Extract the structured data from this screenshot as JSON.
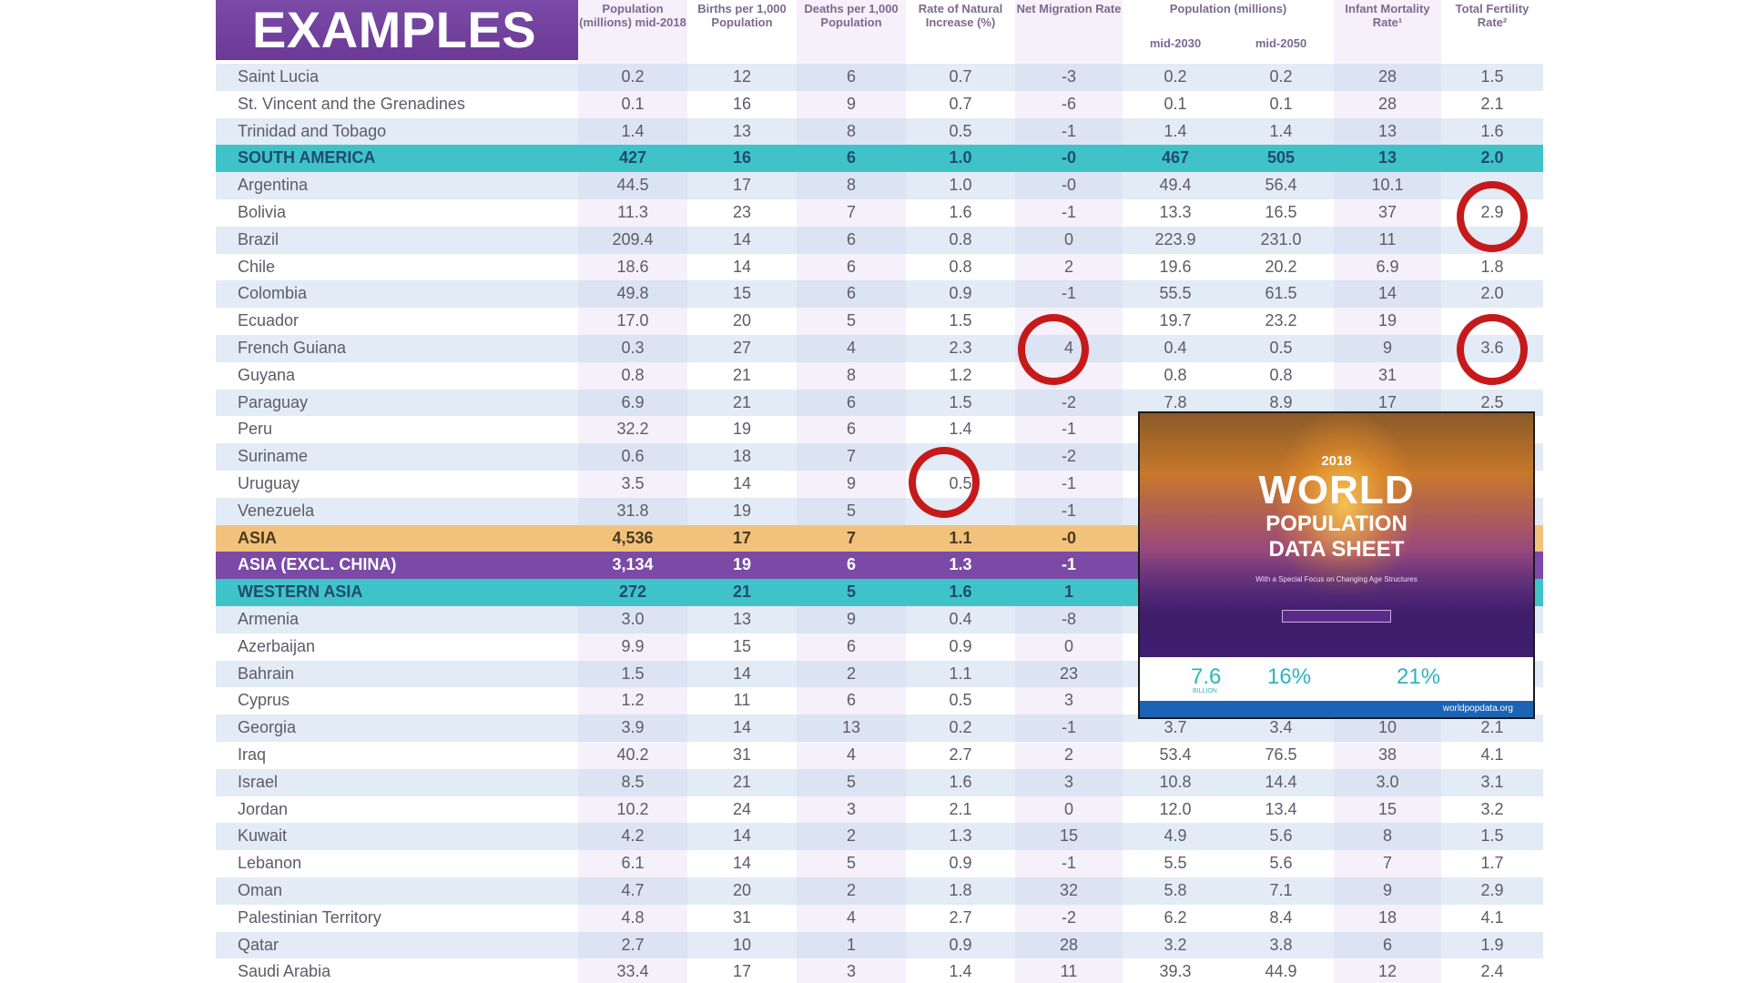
{
  "banner": "EXAMPLES",
  "headers": {
    "pop2018": "Population (millions) mid-2018",
    "births": "Births per 1,000 Population",
    "deaths": "Deaths per 1,000 Population",
    "rni": "Rate of Natural Increase (%)",
    "migration": "Net Migration Rate",
    "projections": "Population (millions)",
    "pop2030": "mid-2030",
    "pop2050": "mid-2050",
    "imr": "Infant Mortality Rate¹",
    "tfr": "Total Fertility Rate²"
  },
  "rows": [
    {
      "name": "Saint Lucia",
      "type": "country",
      "pop": "0.2",
      "births": "12",
      "deaths": "6",
      "rni": "0.7",
      "mig": "-3",
      "p2030": "0.2",
      "p2050": "0.2",
      "imr": "28",
      "tfr": "1.5"
    },
    {
      "name": "St. Vincent and the Grenadines",
      "type": "country",
      "pop": "0.1",
      "births": "16",
      "deaths": "9",
      "rni": "0.7",
      "mig": "-6",
      "p2030": "0.1",
      "p2050": "0.1",
      "imr": "28",
      "tfr": "2.1"
    },
    {
      "name": "Trinidad and Tobago",
      "type": "country",
      "pop": "1.4",
      "births": "13",
      "deaths": "8",
      "rni": "0.5",
      "mig": "-1",
      "p2030": "1.4",
      "p2050": "1.4",
      "imr": "13",
      "tfr": "1.6"
    },
    {
      "name": "SOUTH AMERICA",
      "type": "region-teal",
      "pop": "427",
      "births": "16",
      "deaths": "6",
      "rni": "1.0",
      "mig": "-0",
      "p2030": "467",
      "p2050": "505",
      "imr": "13",
      "tfr": "2.0"
    },
    {
      "name": "Argentina",
      "type": "country",
      "pop": "44.5",
      "births": "17",
      "deaths": "8",
      "rni": "1.0",
      "mig": "-0",
      "p2030": "49.4",
      "p2050": "56.4",
      "imr": "10.1",
      "tfr": ""
    },
    {
      "name": "Bolivia",
      "type": "country",
      "pop": "11.3",
      "births": "23",
      "deaths": "7",
      "rni": "1.6",
      "mig": "-1",
      "p2030": "13.3",
      "p2050": "16.5",
      "imr": "37",
      "tfr": "2.9"
    },
    {
      "name": "Brazil",
      "type": "country",
      "pop": "209.4",
      "births": "14",
      "deaths": "6",
      "rni": "0.8",
      "mig": "0",
      "p2030": "223.9",
      "p2050": "231.0",
      "imr": "11",
      "tfr": ""
    },
    {
      "name": "Chile",
      "type": "country",
      "pop": "18.6",
      "births": "14",
      "deaths": "6",
      "rni": "0.8",
      "mig": "2",
      "p2030": "19.6",
      "p2050": "20.2",
      "imr": "6.9",
      "tfr": "1.8"
    },
    {
      "name": "Colombia",
      "type": "country",
      "pop": "49.8",
      "births": "15",
      "deaths": "6",
      "rni": "0.9",
      "mig": "-1",
      "p2030": "55.5",
      "p2050": "61.5",
      "imr": "14",
      "tfr": "2.0"
    },
    {
      "name": "Ecuador",
      "type": "country",
      "pop": "17.0",
      "births": "20",
      "deaths": "5",
      "rni": "1.5",
      "mig": "",
      "p2030": "19.7",
      "p2050": "23.2",
      "imr": "19",
      "tfr": ""
    },
    {
      "name": "French Guiana",
      "type": "country",
      "pop": "0.3",
      "births": "27",
      "deaths": "4",
      "rni": "2.3",
      "mig": "4",
      "p2030": "0.4",
      "p2050": "0.5",
      "imr": "9",
      "tfr": "3.6"
    },
    {
      "name": "Guyana",
      "type": "country",
      "pop": "0.8",
      "births": "21",
      "deaths": "8",
      "rni": "1.2",
      "mig": "",
      "p2030": "0.8",
      "p2050": "0.8",
      "imr": "31",
      "tfr": ""
    },
    {
      "name": "Paraguay",
      "type": "country",
      "pop": "6.9",
      "births": "21",
      "deaths": "6",
      "rni": "1.5",
      "mig": "-2",
      "p2030": "7.8",
      "p2050": "8.9",
      "imr": "17",
      "tfr": "2.5"
    },
    {
      "name": "Peru",
      "type": "country",
      "pop": "32.2",
      "births": "19",
      "deaths": "6",
      "rni": "1.4",
      "mig": "-1",
      "p2030": "",
      "p2050": "",
      "imr": "",
      "tfr": ""
    },
    {
      "name": "Suriname",
      "type": "country",
      "pop": "0.6",
      "births": "18",
      "deaths": "7",
      "rni": "",
      "mig": "-2",
      "p2030": "",
      "p2050": "",
      "imr": "",
      "tfr": ""
    },
    {
      "name": "Uruguay",
      "type": "country",
      "pop": "3.5",
      "births": "14",
      "deaths": "9",
      "rni": "0.5",
      "mig": "-1",
      "p2030": "",
      "p2050": "",
      "imr": "",
      "tfr": ""
    },
    {
      "name": "Venezuela",
      "type": "country",
      "pop": "31.8",
      "births": "19",
      "deaths": "5",
      "rni": "",
      "mig": "-1",
      "p2030": "",
      "p2050": "",
      "imr": "",
      "tfr": ""
    },
    {
      "name": "ASIA",
      "type": "region-orange",
      "pop": "4,536",
      "births": "17",
      "deaths": "7",
      "rni": "1.1",
      "mig": "-0",
      "p2030": "",
      "p2050": "",
      "imr": "",
      "tfr": ""
    },
    {
      "name": "ASIA (EXCL. CHINA)",
      "type": "region-purple",
      "pop": "3,134",
      "births": "19",
      "deaths": "6",
      "rni": "1.3",
      "mig": "-1",
      "p2030": "",
      "p2050": "",
      "imr": "",
      "tfr": ""
    },
    {
      "name": "WESTERN ASIA",
      "type": "region-teal",
      "pop": "272",
      "births": "21",
      "deaths": "5",
      "rni": "1.6",
      "mig": "1",
      "p2030": "",
      "p2050": "",
      "imr": "",
      "tfr": ""
    },
    {
      "name": "Armenia",
      "type": "country",
      "pop": "3.0",
      "births": "13",
      "deaths": "9",
      "rni": "0.4",
      "mig": "-8",
      "p2030": "",
      "p2050": "",
      "imr": "",
      "tfr": ""
    },
    {
      "name": "Azerbaijan",
      "type": "country",
      "pop": "9.9",
      "births": "15",
      "deaths": "6",
      "rni": "0.9",
      "mig": "0",
      "p2030": "",
      "p2050": "",
      "imr": "",
      "tfr": ""
    },
    {
      "name": "Bahrain",
      "type": "country",
      "pop": "1.5",
      "births": "14",
      "deaths": "2",
      "rni": "1.1",
      "mig": "23",
      "p2030": "",
      "p2050": "",
      "imr": "",
      "tfr": ""
    },
    {
      "name": "Cyprus",
      "type": "country",
      "pop": "1.2",
      "births": "11",
      "deaths": "6",
      "rni": "0.5",
      "mig": "3",
      "p2030": "",
      "p2050": "",
      "imr": "",
      "tfr": ""
    },
    {
      "name": "Georgia",
      "type": "country",
      "pop": "3.9",
      "births": "14",
      "deaths": "13",
      "rni": "0.2",
      "mig": "-1",
      "p2030": "3.7",
      "p2050": "3.4",
      "imr": "10",
      "tfr": "2.1"
    },
    {
      "name": "Iraq",
      "type": "country",
      "pop": "40.2",
      "births": "31",
      "deaths": "4",
      "rni": "2.7",
      "mig": "2",
      "p2030": "53.4",
      "p2050": "76.5",
      "imr": "38",
      "tfr": "4.1"
    },
    {
      "name": "Israel",
      "type": "country",
      "pop": "8.5",
      "births": "21",
      "deaths": "5",
      "rni": "1.6",
      "mig": "3",
      "p2030": "10.8",
      "p2050": "14.4",
      "imr": "3.0",
      "tfr": "3.1"
    },
    {
      "name": "Jordan",
      "type": "country",
      "pop": "10.2",
      "births": "24",
      "deaths": "3",
      "rni": "2.1",
      "mig": "0",
      "p2030": "12.0",
      "p2050": "13.4",
      "imr": "15",
      "tfr": "3.2"
    },
    {
      "name": "Kuwait",
      "type": "country",
      "pop": "4.2",
      "births": "14",
      "deaths": "2",
      "rni": "1.3",
      "mig": "15",
      "p2030": "4.9",
      "p2050": "5.6",
      "imr": "8",
      "tfr": "1.5"
    },
    {
      "name": "Lebanon",
      "type": "country",
      "pop": "6.1",
      "births": "14",
      "deaths": "5",
      "rni": "0.9",
      "mig": "-1",
      "p2030": "5.5",
      "p2050": "5.6",
      "imr": "7",
      "tfr": "1.7"
    },
    {
      "name": "Oman",
      "type": "country",
      "pop": "4.7",
      "births": "20",
      "deaths": "2",
      "rni": "1.8",
      "mig": "32",
      "p2030": "5.8",
      "p2050": "7.1",
      "imr": "9",
      "tfr": "2.9"
    },
    {
      "name": "Palestinian Territory",
      "type": "country",
      "pop": "4.8",
      "births": "31",
      "deaths": "4",
      "rni": "2.7",
      "mig": "-2",
      "p2030": "6.2",
      "p2050": "8.4",
      "imr": "18",
      "tfr": "4.1"
    },
    {
      "name": "Qatar",
      "type": "country",
      "pop": "2.7",
      "births": "10",
      "deaths": "1",
      "rni": "0.9",
      "mig": "28",
      "p2030": "3.2",
      "p2050": "3.8",
      "imr": "6",
      "tfr": "1.9"
    },
    {
      "name": "Saudi Arabia",
      "type": "country",
      "pop": "33.4",
      "births": "17",
      "deaths": "3",
      "rni": "1.4",
      "mig": "11",
      "p2030": "39.3",
      "p2050": "44.9",
      "imr": "12",
      "tfr": "2.4"
    }
  ],
  "cover": {
    "year": "2018",
    "title": "WORLD",
    "subtitle1": "POPULATION",
    "subtitle2": "DATA SHEET",
    "tagline": "With a Special Focus on Changing Age Structures",
    "stat1": "7.6",
    "stat1_unit": "BILLION",
    "stat2": "16%",
    "stat3": "21%",
    "footer": "worldpopdata.org"
  },
  "colors": {
    "teal": "#3fc3c9",
    "orange": "#f2c27d",
    "purple": "#7b4aa6",
    "highlight": "#c61a1a"
  }
}
